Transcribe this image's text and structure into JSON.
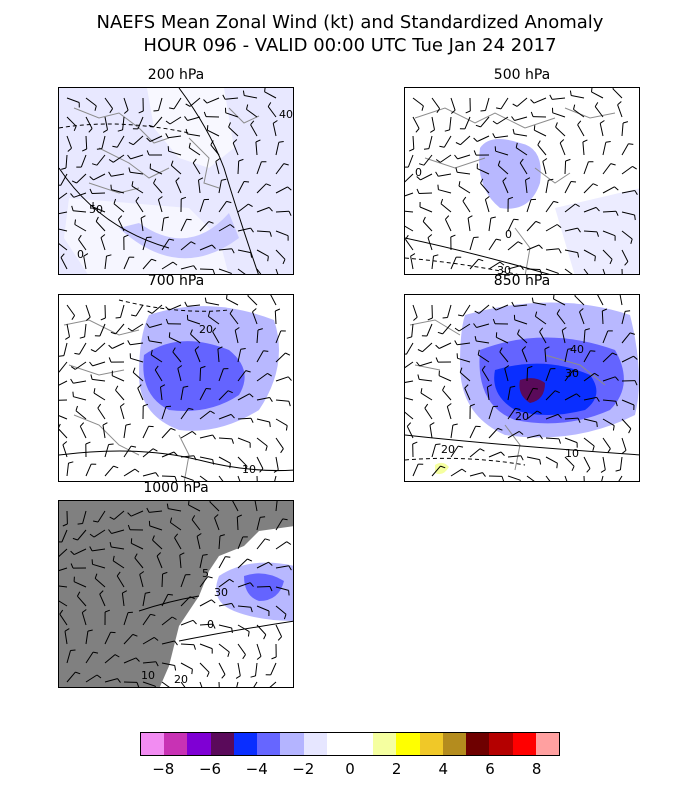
{
  "title": {
    "line1": "NAEFS Mean Zonal Wind (kt) and Standardized Anomaly",
    "line2": "HOUR 096 - VALID 00:00 UTC Tue Jan 24 2017"
  },
  "panels": [
    {
      "label": "200 hPa",
      "contour_labels": [
        "40",
        "50",
        "0"
      ]
    },
    {
      "label": "500 hPa",
      "contour_labels": [
        "0",
        "30",
        "0"
      ]
    },
    {
      "label": "700 hPa",
      "contour_labels": [
        "20",
        "10"
      ]
    },
    {
      "label": "850 hPa",
      "contour_labels": [
        "40",
        "30",
        "20",
        "10",
        "20"
      ]
    },
    {
      "label": "1000 hPa",
      "contour_labels": [
        "5",
        "30",
        "0",
        "10",
        "20"
      ]
    }
  ],
  "colorbar": {
    "colors": [
      "#f28cf2",
      "#c832b4",
      "#7f00d4",
      "#5a0a5a",
      "#0a2eff",
      "#6666ff",
      "#b4b4ff",
      "#e6e6ff",
      "#ffffff",
      "#ffffff",
      "#f5ffa0",
      "#ffff00",
      "#f0c828",
      "#b48c1e",
      "#6e0000",
      "#b40000",
      "#ff0000",
      "#ffa0a0"
    ],
    "ticks": [
      "−8",
      "−6",
      "−4",
      "−2",
      "0",
      "2",
      "4",
      "6",
      "8"
    ]
  }
}
